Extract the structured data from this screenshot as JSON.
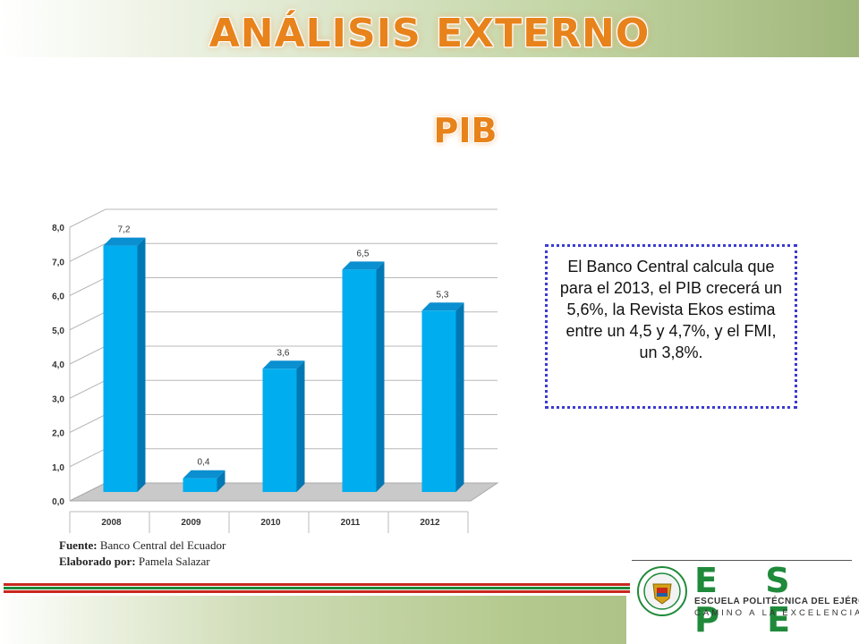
{
  "header": {
    "title": "ANÁLISIS EXTERNO",
    "subtitle": "PIB"
  },
  "note": {
    "text": "El Banco Central calcula que para el 2013, el PIB crecerá un 5,6%, la Revista Ekos estima entre un 4,5 y 4,7%,  y el FMI, un 3,8%."
  },
  "source": {
    "fuente_label": "Fuente:",
    "fuente_value": "Banco Central del Ecuador",
    "elaborado_label": "Elaborado por:",
    "elaborado_value": "Pamela Salazar"
  },
  "logo": {
    "letters": "E S P E",
    "line1": "ESCUELA POLITÉCNICA DEL EJÉRCITO",
    "line2": "CAMINO A LA EXCELENCIA"
  },
  "colors": {
    "accent": "#e8821a",
    "bar": "#00aeef",
    "bar_side": "#0078b4",
    "bar_top": "#0a8fd0",
    "note_border": "#3b3bd1",
    "logo_green": "#1f8a3a"
  },
  "chart_data": {
    "type": "bar",
    "categories": [
      "2008",
      "2009",
      "2010",
      "2011",
      "2012"
    ],
    "values": [
      7.2,
      0.4,
      3.6,
      6.5,
      5.3
    ],
    "data_labels": [
      "7,2",
      "0,4",
      "3,6",
      "6,5",
      "5,3"
    ],
    "ytick_labels": [
      "0,0",
      "1,0",
      "2,0",
      "3,0",
      "4,0",
      "5,0",
      "6,0",
      "7,0",
      "8,0"
    ],
    "ylim": [
      0,
      8
    ],
    "grid": true,
    "style": "3d"
  }
}
